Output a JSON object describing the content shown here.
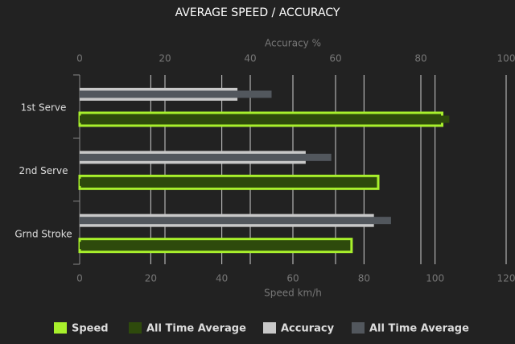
{
  "chart_data": {
    "type": "bar",
    "orientation": "horizontal",
    "title": "AVERAGE SPEED / ACCURACY",
    "xlabel": "Speed km/h",
    "x2label": "Accuracy %",
    "categories": [
      "1st Serve",
      "2nd Serve",
      "Grnd Stroke"
    ],
    "series": [
      {
        "name": "Speed",
        "color": "#a8f02c",
        "values": [
          102,
          84,
          76.5
        ],
        "axis": "x",
        "role": "main"
      },
      {
        "name": "All Time Average",
        "color": "#2e4a0c",
        "values": [
          104,
          83,
          76
        ],
        "axis": "x",
        "role": "average"
      },
      {
        "name": "Accuracy",
        "color": "#c8c8c8",
        "values": [
          37,
          53,
          69
        ],
        "axis": "x2",
        "role": "main"
      },
      {
        "name": "All Time Average",
        "color": "#52575d",
        "values": [
          45,
          59,
          73
        ],
        "axis": "x2",
        "role": "average"
      }
    ],
    "xlim": [
      0,
      120
    ],
    "xticks": [
      0,
      20,
      40,
      60,
      80,
      100,
      120
    ],
    "x2lim": [
      0,
      100
    ],
    "x2ticks": [
      0,
      20,
      40,
      60,
      80,
      100
    ],
    "grid": true,
    "legend": "bottom"
  }
}
